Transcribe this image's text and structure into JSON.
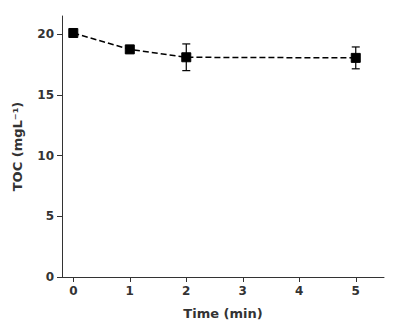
{
  "chart_data": {
    "type": "line",
    "x": [
      0,
      1,
      2,
      5
    ],
    "values": [
      20.1,
      18.75,
      18.1,
      18.05
    ],
    "yerr": [
      0.0,
      0.28,
      1.1,
      0.9
    ],
    "xlabel": "Time (min)",
    "ylabel": "TOC (mgL⁻¹)",
    "xlim": [
      -0.2,
      5.5
    ],
    "ylim": [
      0,
      21.5
    ],
    "xticks": [
      0,
      1,
      2,
      3,
      4,
      5
    ],
    "yticks": [
      0,
      5,
      10,
      15,
      20
    ],
    "color": "#000000",
    "marker": "square",
    "line_style": "dashed",
    "grid": false
  }
}
